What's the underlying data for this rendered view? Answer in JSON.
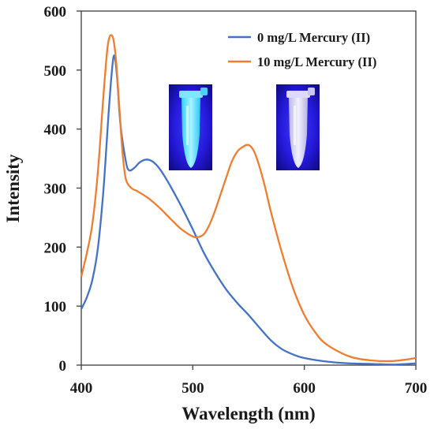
{
  "chart_data": {
    "type": "line",
    "title": "",
    "xlabel": "Wavelength (nm)",
    "ylabel": "Intensity",
    "xlim": [
      400,
      700
    ],
    "ylim": [
      0,
      600
    ],
    "xticks": [
      400,
      500,
      600,
      700
    ],
    "yticks": [
      0,
      100,
      200,
      300,
      400,
      500,
      600
    ],
    "grid": false,
    "legend_position": "top-right",
    "series": [
      {
        "name": "0 mg/L Mercury (II)",
        "color": "#4472c4",
        "x": [
          400,
          405,
          410,
          415,
          420,
          425,
          429,
          432,
          435,
          440,
          443,
          448,
          452,
          457,
          462,
          467,
          472,
          480,
          490,
          500,
          510,
          520,
          530,
          540,
          550,
          560,
          570,
          580,
          590,
          600,
          620,
          640,
          660,
          680,
          700
        ],
        "y": [
          95,
          115,
          145,
          200,
          300,
          440,
          523,
          490,
          410,
          345,
          330,
          335,
          343,
          348,
          347,
          340,
          328,
          303,
          268,
          230,
          190,
          157,
          128,
          105,
          85,
          63,
          42,
          27,
          18,
          12,
          6,
          3,
          2,
          1,
          3
        ]
      },
      {
        "name": "10 mg/L Mercury (II)",
        "color": "#ed7d31",
        "x": [
          400,
          405,
          410,
          415,
          420,
          424,
          428,
          431,
          434,
          437,
          440,
          445,
          450,
          460,
          470,
          480,
          490,
          500,
          505,
          510,
          515,
          520,
          525,
          530,
          535,
          540,
          545,
          550,
          555,
          560,
          565,
          570,
          580,
          590,
          600,
          610,
          620,
          640,
          660,
          680,
          700
        ],
        "y": [
          150,
          190,
          240,
          330,
          460,
          545,
          557,
          520,
          440,
          360,
          315,
          300,
          295,
          283,
          267,
          248,
          230,
          218,
          217,
          222,
          238,
          262,
          290,
          318,
          345,
          362,
          370,
          373,
          362,
          335,
          300,
          260,
          190,
          130,
          85,
          55,
          35,
          15,
          8,
          7,
          12
        ]
      }
    ]
  }
}
